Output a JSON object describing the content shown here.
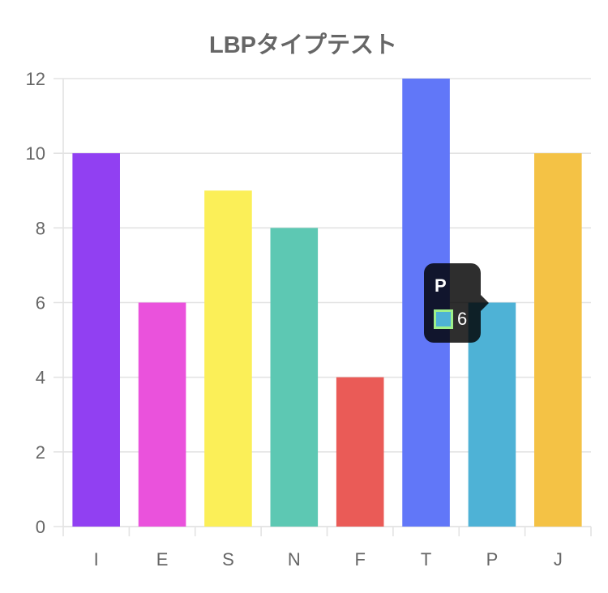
{
  "chart_data": {
    "type": "bar",
    "title": "LBPタイプテスト",
    "categories": [
      "I",
      "E",
      "S",
      "N",
      "F",
      "T",
      "P",
      "J"
    ],
    "values": [
      10,
      6,
      9,
      8,
      4,
      12,
      6,
      10
    ],
    "colors": [
      "#9140f2",
      "#ea52dc",
      "#fbef58",
      "#5dc8b3",
      "#ea5b57",
      "#6177f8",
      "#4eb2d6",
      "#f4c245"
    ],
    "ylim": [
      0,
      12
    ],
    "yticks": [
      0,
      2,
      4,
      6,
      8,
      10,
      12
    ],
    "grid": true,
    "legend": "none"
  },
  "tooltip": {
    "title": "P",
    "value": "6",
    "swatch_color": "#4eb2d6"
  }
}
